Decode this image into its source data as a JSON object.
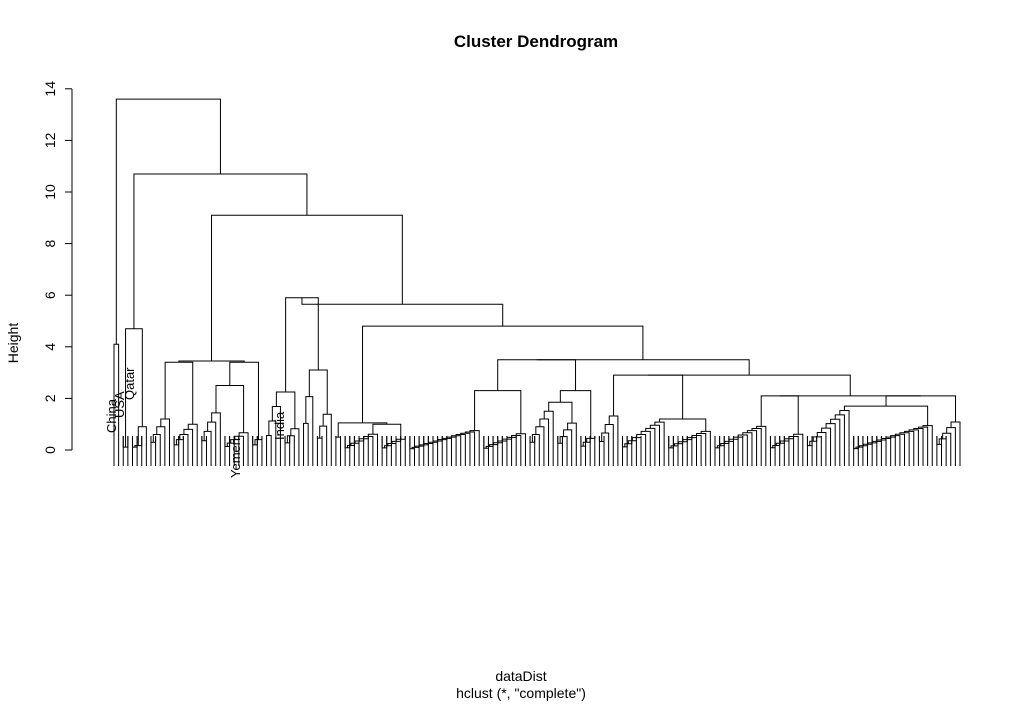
{
  "chart_data": {
    "type": "dendrogram",
    "title": "Cluster Dendrogram",
    "xlabel": "dataDist",
    "subtitle": "hclust (*, \"complete\")",
    "ylabel": "Height",
    "ylim": [
      0,
      14
    ],
    "y_ticks": [
      0,
      2,
      4,
      6,
      8,
      10,
      12,
      14
    ],
    "labeled_leaves": [
      "China",
      "USA",
      "Qatar",
      "India",
      "Yemen"
    ],
    "merge_heights": [
      13.6,
      10.7,
      9.1,
      5.9,
      5.65,
      4.8,
      4.7,
      4.1,
      3.5,
      3.4,
      3.1,
      2.9,
      2.5,
      2.3,
      2.25,
      2.1,
      1.85,
      1.8,
      1.7,
      1.65,
      1.5,
      1.3,
      1.2,
      1.05,
      1.0,
      0.8,
      0.7,
      0.6,
      0.5
    ]
  }
}
